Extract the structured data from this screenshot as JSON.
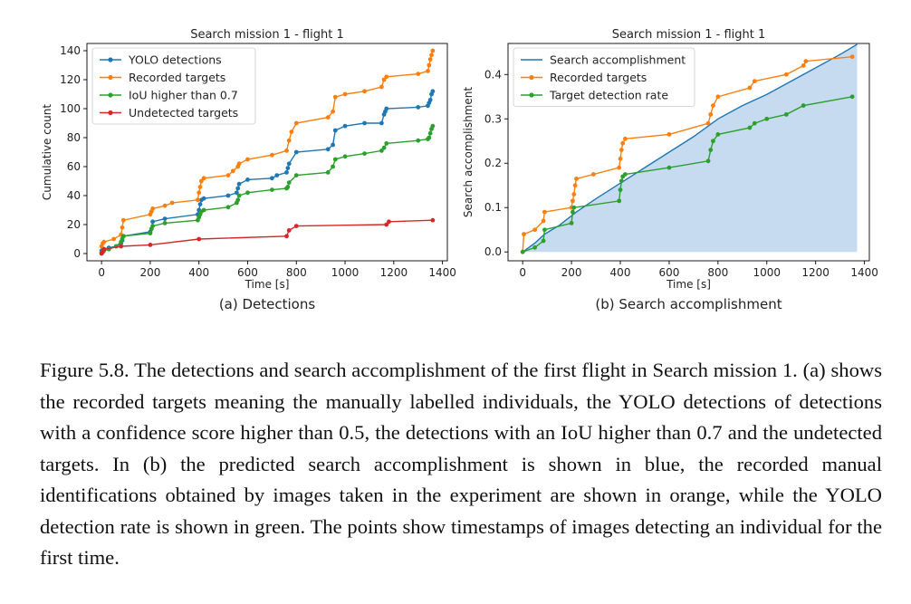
{
  "figure": {
    "caption": "Figure 5.8. The detections and search accomplishment of the first flight in Search mission 1. (a) shows the recorded targets meaning the manually labelled individuals, the YOLO detections of detections with a confidence score higher than 0.5, the detections with an IoU higher than 0.7 and the undetected targets. In (b) the predicted search accomplishment is shown in blue, the recorded manual identifications obtained by images taken in the experiment are shown in orange, while the YOLO detection rate is shown in green. The points show timestamps of images detecting an individual for the first time."
  },
  "chart_data": [
    {
      "type": "line",
      "title": "Search mission 1 - flight 1",
      "subtitle": "(a) Detections",
      "xlabel": "Time [s]",
      "ylabel": "Cumulative count",
      "xlim": [
        -60,
        1420
      ],
      "ylim": [
        -5,
        145
      ],
      "xticks": [
        0,
        200,
        400,
        600,
        800,
        1000,
        1200,
        1400
      ],
      "yticks": [
        0,
        20,
        40,
        60,
        80,
        100,
        120,
        140
      ],
      "legend_position": "top-left",
      "series": [
        {
          "name": "YOLO detections",
          "color": "#1f77b4",
          "x": [
            0,
            10,
            30,
            60,
            80,
            85,
            90,
            200,
            205,
            210,
            260,
            395,
            400,
            405,
            410,
            420,
            520,
            555,
            560,
            565,
            600,
            700,
            720,
            760,
            765,
            770,
            800,
            930,
            950,
            960,
            1000,
            1080,
            1150,
            1160,
            1165,
            1170,
            1300,
            1340,
            1345,
            1350,
            1355,
            1360
          ],
          "y": [
            2,
            3,
            4,
            5,
            7,
            9,
            12,
            15,
            17,
            22,
            24,
            27,
            30,
            34,
            37,
            38,
            40,
            42,
            45,
            48,
            51,
            52,
            54,
            56,
            59,
            62,
            70,
            72,
            75,
            85,
            88,
            90,
            90,
            96,
            98,
            100,
            101,
            102,
            104,
            106,
            110,
            112
          ]
        },
        {
          "name": "Recorded targets",
          "color": "#ff7f0e",
          "x": [
            0,
            5,
            10,
            50,
            80,
            85,
            90,
            200,
            205,
            210,
            260,
            290,
            395,
            400,
            405,
            410,
            420,
            520,
            540,
            560,
            565,
            600,
            700,
            760,
            770,
            780,
            800,
            930,
            950,
            960,
            1000,
            1080,
            1150,
            1160,
            1170,
            1300,
            1340,
            1345,
            1350,
            1355,
            1360
          ],
          "y": [
            5,
            7,
            8,
            10,
            13,
            18,
            23,
            27,
            29,
            31,
            33,
            35,
            37,
            42,
            46,
            50,
            52,
            54,
            57,
            60,
            62,
            65,
            68,
            71,
            78,
            84,
            90,
            94,
            98,
            108,
            110,
            112,
            115,
            120,
            122,
            124,
            126,
            130,
            134,
            137,
            140
          ]
        },
        {
          "name": "IoU higher than 0.7",
          "color": "#2ca02c",
          "x": [
            0,
            10,
            30,
            60,
            80,
            85,
            90,
            200,
            205,
            210,
            260,
            395,
            400,
            405,
            410,
            420,
            520,
            555,
            560,
            565,
            600,
            700,
            760,
            765,
            770,
            800,
            930,
            950,
            960,
            1000,
            1080,
            1150,
            1160,
            1170,
            1300,
            1340,
            1345,
            1350,
            1355,
            1360
          ],
          "y": [
            1,
            2,
            3,
            5,
            8,
            10,
            12,
            14,
            17,
            19,
            21,
            23,
            25,
            27,
            29,
            30,
            32,
            35,
            37,
            40,
            42,
            44,
            45,
            46,
            49,
            54,
            56,
            60,
            65,
            67,
            69,
            71,
            73,
            76,
            78,
            79,
            80,
            83,
            86,
            88
          ]
        },
        {
          "name": "Undetected targets",
          "color": "#d62728",
          "x": [
            0,
            5,
            10,
            80,
            200,
            400,
            760,
            770,
            800,
            1170,
            1180,
            1360
          ],
          "y": [
            0,
            1,
            3,
            5,
            6,
            10,
            12,
            16,
            19,
            20,
            22,
            23
          ]
        }
      ]
    },
    {
      "type": "line",
      "title": "Search mission 1 - flight 1",
      "subtitle": "(b) Search accomplishment",
      "xlabel": "Time [s]",
      "ylabel": "Search accomplishment",
      "xlim": [
        -60,
        1420
      ],
      "ylim": [
        -0.02,
        0.47
      ],
      "xticks": [
        0,
        200,
        400,
        600,
        800,
        1000,
        1200,
        1400
      ],
      "yticks": [
        0.0,
        0.1,
        0.2,
        0.3,
        0.4
      ],
      "ytick_labels": [
        "0.0",
        "0.1",
        "0.2",
        "0.3",
        "0.4"
      ],
      "legend_position": "top-left",
      "series": [
        {
          "name": "Search accomplishment",
          "color": "#1f77b4",
          "fill": "#c6dbef",
          "markers": false,
          "x": [
            0,
            50,
            90,
            150,
            220,
            300,
            400,
            500,
            600,
            700,
            800,
            900,
            1000,
            1100,
            1200,
            1300,
            1370
          ],
          "y": [
            0.0,
            0.02,
            0.04,
            0.06,
            0.09,
            0.12,
            0.155,
            0.19,
            0.225,
            0.26,
            0.3,
            0.33,
            0.355,
            0.385,
            0.415,
            0.445,
            0.468
          ]
        },
        {
          "name": "Recorded targets",
          "color": "#ff7f0e",
          "markers": true,
          "x": [
            0,
            5,
            50,
            85,
            90,
            200,
            205,
            210,
            215,
            220,
            290,
            395,
            400,
            405,
            410,
            420,
            600,
            760,
            770,
            780,
            800,
            930,
            950,
            1080,
            1150,
            1160,
            1350
          ],
          "y": [
            0.0,
            0.04,
            0.05,
            0.07,
            0.09,
            0.1,
            0.115,
            0.13,
            0.15,
            0.165,
            0.175,
            0.19,
            0.21,
            0.23,
            0.245,
            0.255,
            0.265,
            0.29,
            0.31,
            0.33,
            0.35,
            0.37,
            0.385,
            0.4,
            0.42,
            0.43,
            0.44
          ]
        },
        {
          "name": "Target detection rate",
          "color": "#2ca02c",
          "markers": true,
          "x": [
            0,
            50,
            85,
            90,
            200,
            205,
            210,
            395,
            400,
            405,
            410,
            420,
            600,
            760,
            770,
            780,
            800,
            930,
            950,
            1000,
            1080,
            1150,
            1350
          ],
          "y": [
            0.0,
            0.01,
            0.025,
            0.05,
            0.065,
            0.09,
            0.1,
            0.115,
            0.14,
            0.16,
            0.17,
            0.175,
            0.19,
            0.205,
            0.23,
            0.25,
            0.265,
            0.28,
            0.29,
            0.3,
            0.31,
            0.33,
            0.35
          ]
        }
      ]
    }
  ]
}
